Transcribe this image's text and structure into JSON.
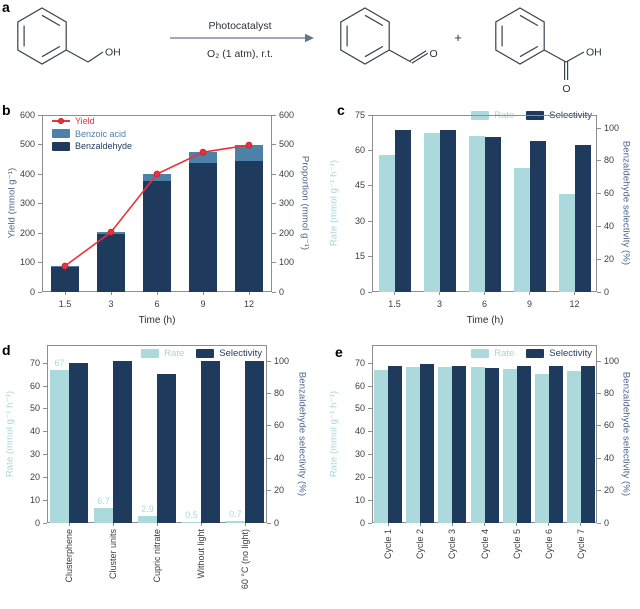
{
  "figure": {
    "background": "#ffffff"
  },
  "colors": {
    "navy": "#1e3a5c",
    "light_cyan": "#abd9dc",
    "steel_blue": "#4e81a8",
    "red": "#e8333f",
    "slate_label": "#4a648c",
    "tick_text": "#3d3d3d",
    "frame": "#8e8e8e"
  },
  "panels": {
    "a": {
      "label": "a",
      "scheme": {
        "above_arrow": "Photocatalyst",
        "below_arrow": "O₂ (1 atm), r.t.",
        "plus": "+",
        "benzyl_alcohol_group": "OH",
        "benzaldehyde_o": "O",
        "benzoic_acid_oh": "OH",
        "benzoic_acid_o": "O"
      }
    },
    "b": {
      "label": "b"
    },
    "c": {
      "label": "c"
    },
    "d": {
      "label": "d"
    },
    "e": {
      "label": "e"
    }
  },
  "chart_data": [
    {
      "id": "b",
      "type": "bar",
      "subtype": "stacked-bars-with-line",
      "title": "",
      "xlabel": "Time (h)",
      "ylabel_left": "Yield (mmol g⁻¹)",
      "ylabel_right": "Proportion (mmol g⁻¹)",
      "categories": [
        "1.5",
        "3",
        "6",
        "9",
        "12"
      ],
      "series": [
        {
          "name": "Benzaldehyde",
          "color_key": "navy",
          "values": [
            86,
            198,
            376,
            437,
            444
          ]
        },
        {
          "name": "Benzoic acid",
          "color_key": "steel_blue",
          "values": [
            2,
            5,
            24,
            37,
            54
          ]
        }
      ],
      "line": {
        "name": "Yield",
        "color_key": "red",
        "values": [
          88,
          203,
          400,
          474,
          498
        ]
      },
      "ylim_left": [
        0,
        600
      ],
      "yticks_left": [
        0,
        100,
        200,
        300,
        400,
        500,
        600
      ],
      "ylim_right": [
        0,
        600
      ],
      "yticks_right": [
        0,
        100,
        200,
        300,
        400,
        500,
        600
      ],
      "legend_position": "top-left-inside",
      "grid": false
    },
    {
      "id": "c",
      "type": "bar",
      "subtype": "grouped-dual-axis",
      "title": "",
      "xlabel": "Time (h)",
      "ylabel_left": "Rate (mmol g⁻¹ h⁻¹)",
      "ylabel_right": "Benzaldehyde selectivity (%)",
      "categories": [
        "1.5",
        "3",
        "6",
        "9",
        "12"
      ],
      "series": [
        {
          "name": "Rate",
          "axis": "left",
          "color_key": "light_cyan",
          "values": [
            58,
            67.5,
            66,
            52.5,
            41.5
          ]
        },
        {
          "name": "Selectivity",
          "axis": "right",
          "color_key": "navy",
          "values": [
            99,
            99,
            94.5,
            92,
            90
          ]
        }
      ],
      "ylim_left": [
        0,
        75
      ],
      "yticks_left": [
        0,
        15,
        30,
        45,
        60,
        75
      ],
      "ylim_right": [
        0,
        108
      ],
      "yticks_right": [
        0,
        20,
        40,
        60,
        80,
        100
      ],
      "legend_position": "top-right-inside",
      "grid": false
    },
    {
      "id": "d",
      "type": "bar",
      "subtype": "grouped-dual-axis",
      "title": "",
      "xlabel": "",
      "ylabel_left": "Rate (mmol g⁻¹ h⁻¹)",
      "ylabel_right": "Benzaldehyde selectivity (%)",
      "categories": [
        "Clusterphene",
        "Cluster units",
        "Cupric nitrate",
        "Without light",
        "60 °C (no light)"
      ],
      "series": [
        {
          "name": "Rate",
          "axis": "left",
          "color_key": "light_cyan",
          "values": [
            67,
            6.7,
            2.9,
            0.5,
            0.7
          ],
          "value_labels": [
            "67",
            "6.7",
            "2.9",
            "0.5",
            "0.7"
          ]
        },
        {
          "name": "Selectivity",
          "axis": "right",
          "color_key": "navy",
          "values": [
            99,
            100,
            92,
            100,
            100
          ]
        }
      ],
      "ylim_left": [
        0,
        78
      ],
      "yticks_left": [
        0,
        10,
        20,
        30,
        40,
        50,
        60,
        70
      ],
      "ylim_right": [
        0,
        110
      ],
      "yticks_right": [
        0,
        20,
        40,
        60,
        80,
        100
      ],
      "legend_position": "top-right-inside",
      "rotated_x_labels": true,
      "grid": false
    },
    {
      "id": "e",
      "type": "bar",
      "subtype": "grouped-dual-axis",
      "title": "",
      "xlabel": "",
      "ylabel_left": "Rate (mmol g⁻¹ h⁻¹)",
      "ylabel_right": "Benzaldehyde selectivity (%)",
      "categories": [
        "Cycle 1",
        "Cycle 2",
        "Cycle 3",
        "Cycle 4",
        "Cycle 5",
        "Cycle 6",
        "Cycle 7"
      ],
      "series": [
        {
          "name": "Rate",
          "axis": "left",
          "color_key": "light_cyan",
          "values": [
            67,
            68.5,
            68.5,
            68.5,
            67.5,
            65.5,
            66.5
          ]
        },
        {
          "name": "Selectivity",
          "axis": "right",
          "color_key": "navy",
          "values": [
            97,
            98,
            97,
            96,
            97,
            97,
            97
          ]
        }
      ],
      "ylim_left": [
        0,
        78
      ],
      "yticks_left": [
        0,
        10,
        20,
        30,
        40,
        50,
        60,
        70
      ],
      "ylim_right": [
        0,
        110
      ],
      "yticks_right": [
        0,
        20,
        40,
        60,
        80,
        100
      ],
      "legend_position": "top-right-inside",
      "rotated_x_labels": true,
      "grid": false
    }
  ]
}
